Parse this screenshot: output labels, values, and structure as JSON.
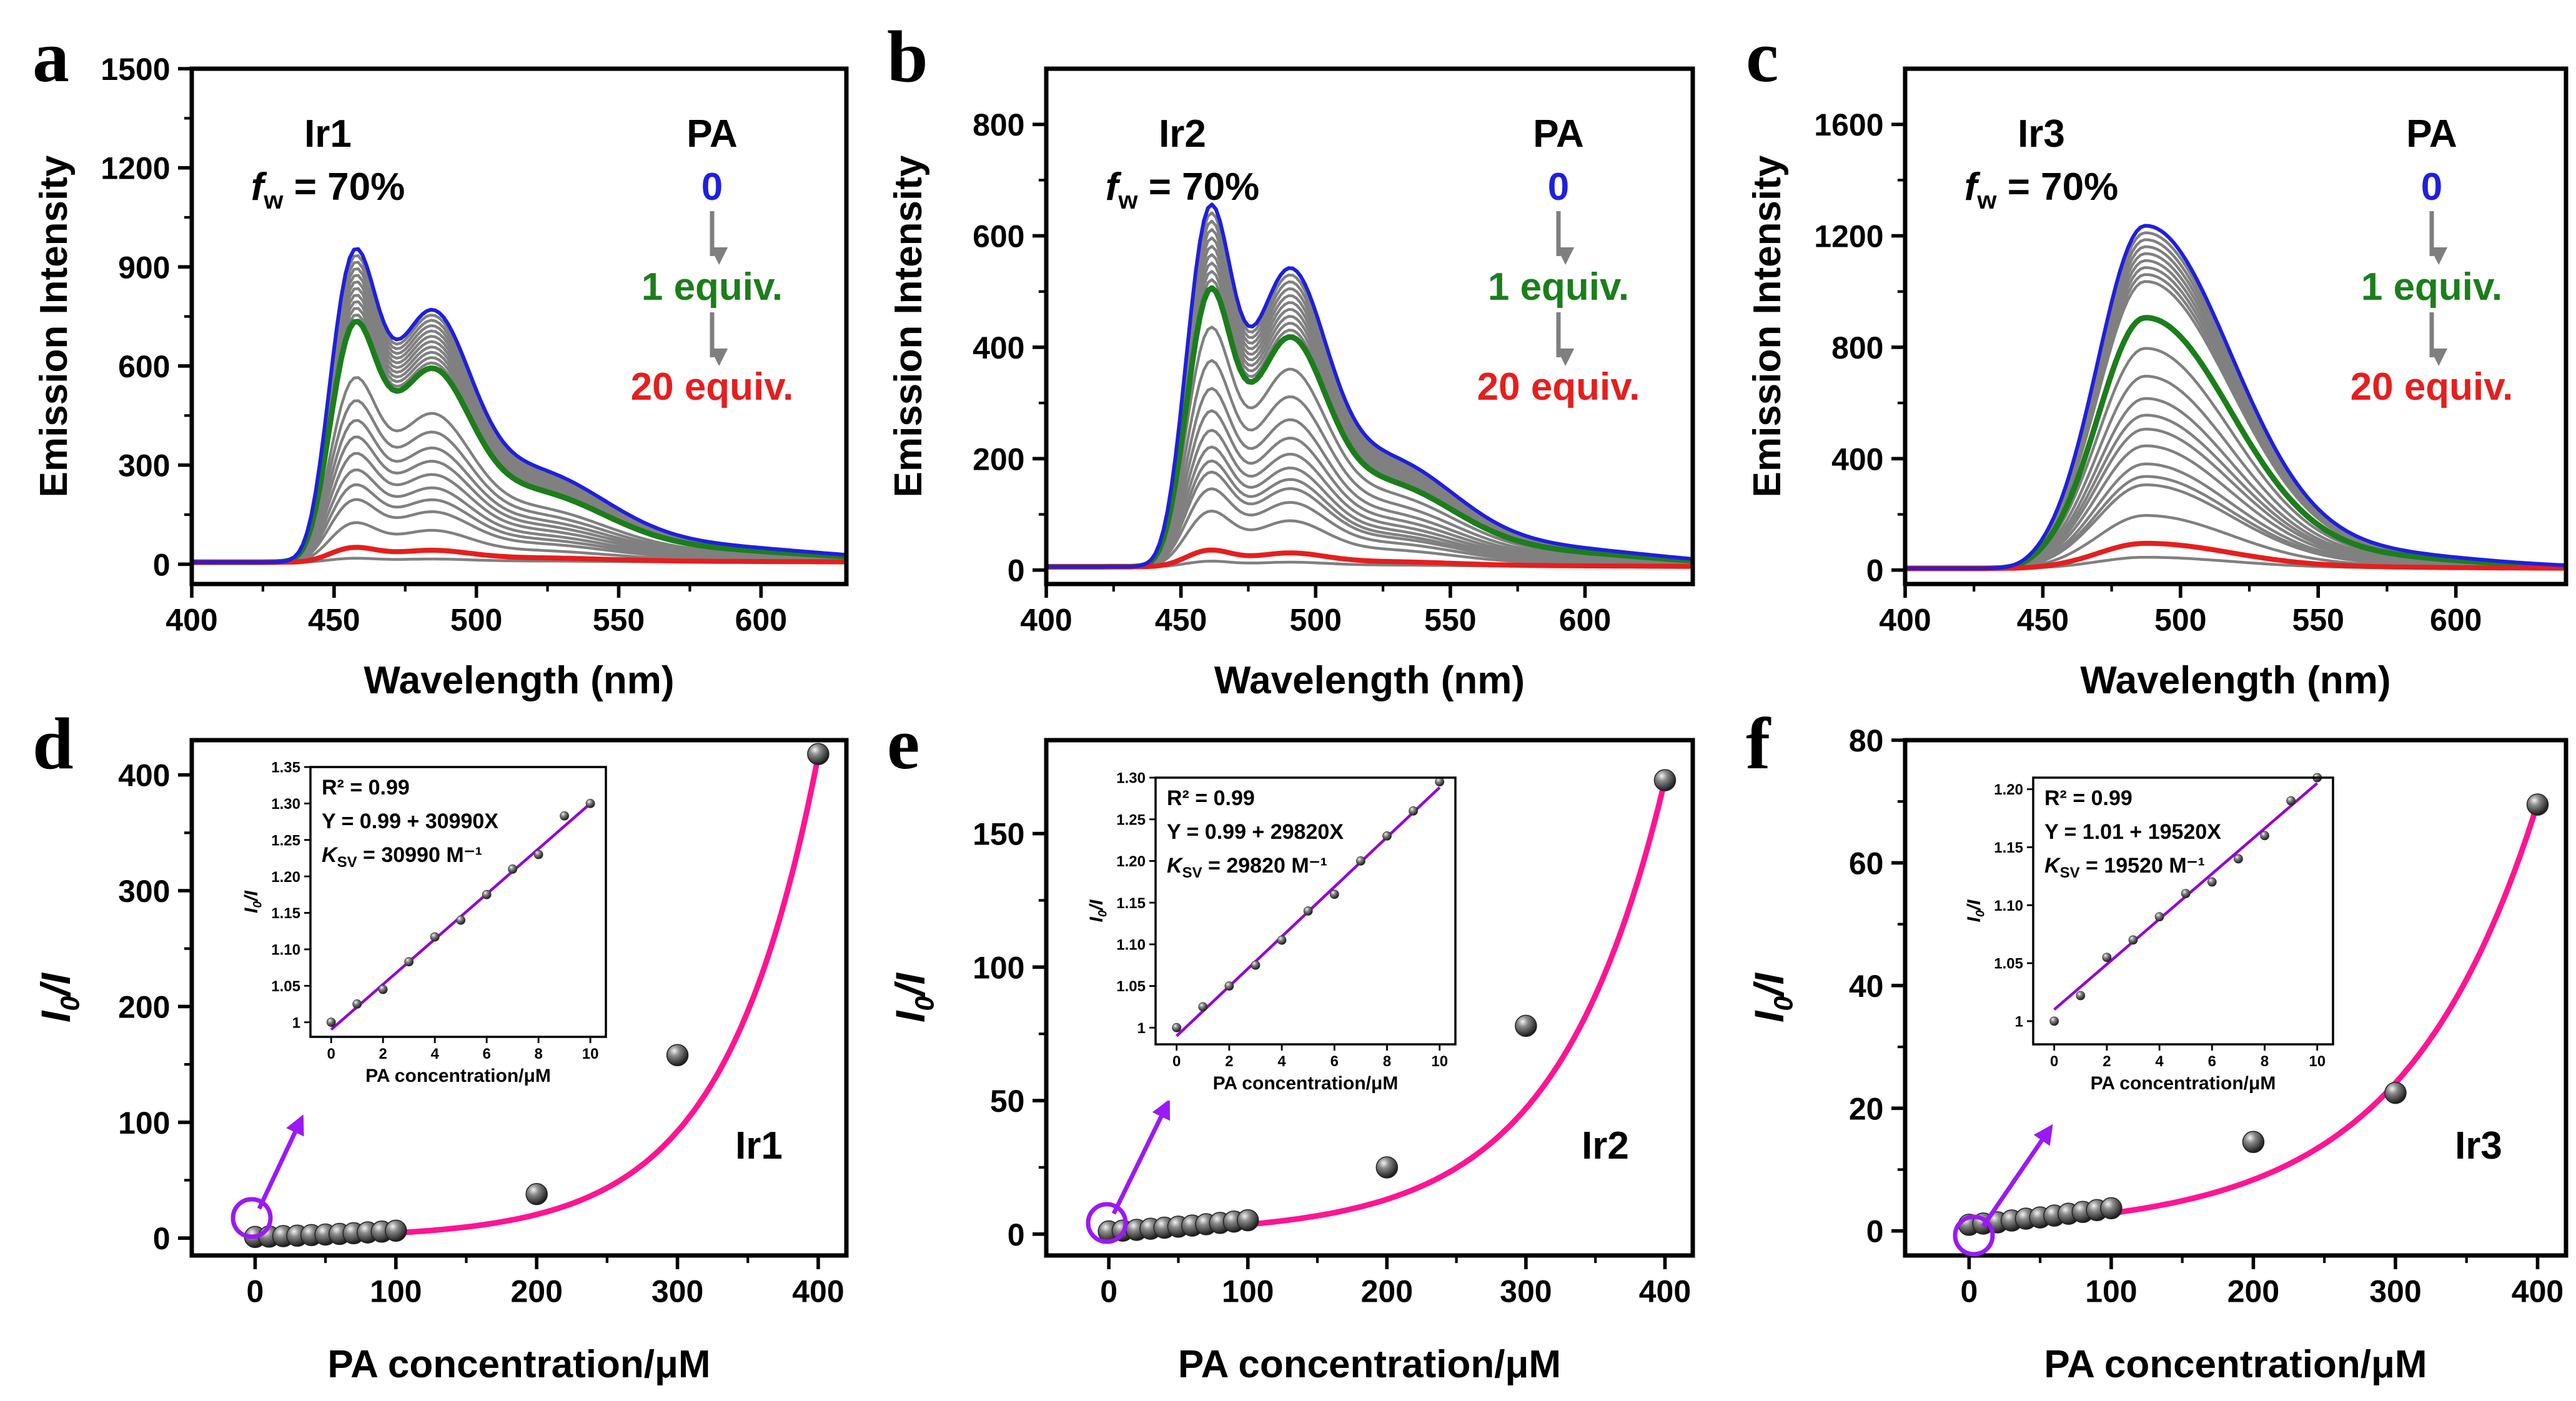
{
  "chart_data": [
    {
      "panel": "a",
      "type": "line",
      "title": "",
      "xlabel": "Wavelength (nm)",
      "ylabel": "Emission Intensity",
      "xlim": [
        400,
        630
      ],
      "ylim": [
        -60,
        1500
      ],
      "xticks": [
        400,
        450,
        500,
        550,
        600
      ],
      "yticks": [
        0,
        300,
        600,
        900,
        1200,
        1500
      ],
      "compound": "Ir1",
      "fw_prefix": "f",
      "fw_sub": "w",
      "fw_suffix": " = 70%",
      "legend": {
        "title": "PA",
        "start": "0",
        "mid": "1 equiv.",
        "end": "20 equiv."
      },
      "shape": "two-peak",
      "peak1_nm": 456,
      "peak2_nm": 483,
      "peak_intensities": [
        950,
        930,
        910,
        890,
        870,
        850,
        830,
        810,
        790,
        770,
        750,
        730,
        560,
        490,
        430,
        380,
        330,
        280,
        235,
        190,
        120,
        45,
        12
      ],
      "series_colors": {
        "initial": "#1f1fe0",
        "one_equiv": "#1b7e1b",
        "final": "#e61e1e",
        "other": "#808080"
      }
    },
    {
      "panel": "b",
      "type": "line",
      "title": "",
      "xlabel": "Wavelength (nm)",
      "ylabel": "Emission Intensity",
      "xlim": [
        400,
        640
      ],
      "ylim": [
        -25,
        900
      ],
      "xticks": [
        400,
        450,
        500,
        550,
        600
      ],
      "yticks": [
        0,
        200,
        400,
        600,
        800
      ],
      "compound": "Ir2",
      "fw_prefix": "f",
      "fw_sub": "w",
      "fw_suffix": " = 70%",
      "legend": {
        "title": "PA",
        "start": "0",
        "mid": "1 equiv.",
        "end": "20 equiv."
      },
      "shape": "two-peak",
      "peak1_nm": 460,
      "peak2_nm": 489,
      "peak_intensities": [
        650,
        635,
        620,
        605,
        590,
        575,
        560,
        545,
        530,
        515,
        500,
        430,
        370,
        320,
        280,
        245,
        215,
        190,
        170,
        140,
        100,
        30,
        10
      ],
      "series_colors": {
        "initial": "#1f1fe0",
        "one_equiv": "#1b7e1b",
        "final": "#e61e1e",
        "other": "#808080"
      }
    },
    {
      "panel": "c",
      "type": "line",
      "title": "",
      "xlabel": "Wavelength (nm)",
      "ylabel": "Emission Intensity",
      "xlim": [
        400,
        640
      ],
      "ylim": [
        -50,
        1800
      ],
      "xticks": [
        400,
        450,
        500,
        550,
        600
      ],
      "yticks": [
        0,
        400,
        800,
        1200,
        1600
      ],
      "compound": "Ir3",
      "fw_prefix": "f",
      "fw_sub": "w",
      "fw_suffix": " = 70%",
      "legend": {
        "title": "PA",
        "start": "0",
        "mid": "1 equiv.",
        "end": "20 equiv."
      },
      "shape": "one-peak",
      "peak1_nm": 487,
      "peak_intensities": [
        1230,
        1205,
        1180,
        1155,
        1130,
        1105,
        1080,
        1055,
        1030,
        900,
        790,
        690,
        610,
        550,
        500,
        440,
        375,
        330,
        300,
        190,
        90,
        40
      ],
      "series_colors": {
        "initial": "#1f1fe0",
        "one_equiv": "#1b7e1b",
        "final": "#e61e1e",
        "other": "#808080"
      }
    },
    {
      "panel": "d",
      "type": "scatter",
      "title": "",
      "xlabel": "PA concentration/μM",
      "ylabel_i": "I",
      "ylabel_sub": "0",
      "ylabel_rest": "/I",
      "xlim": [
        -45,
        420
      ],
      "ylim": [
        -15,
        430
      ],
      "xticks": [
        0,
        100,
        200,
        300,
        400
      ],
      "yticks": [
        0,
        100,
        200,
        300,
        400
      ],
      "compound": "Ir1",
      "x": [
        0,
        10,
        20,
        30,
        40,
        50,
        60,
        70,
        80,
        90,
        100,
        200,
        300,
        400
      ],
      "y": [
        1,
        1.3,
        1.7,
        2.1,
        2.6,
        3.1,
        3.6,
        4.2,
        4.9,
        5.6,
        6.4,
        38,
        158,
        418
      ],
      "fit": {
        "color": "#ff1493",
        "a": 1.0,
        "k": 0.01508
      },
      "inset": {
        "xlabel": "PA concentration/μM",
        "ylabel_i": "I",
        "ylabel_sub": "0",
        "ylabel_rest": "/I",
        "xlim": [
          -0.8,
          10.6
        ],
        "ylim": [
          0.98,
          1.35
        ],
        "xticks": [
          0,
          2,
          4,
          6,
          8,
          10
        ],
        "yticks": [
          1.0,
          1.05,
          1.1,
          1.15,
          1.2,
          1.25,
          1.3,
          1.35
        ],
        "x": [
          0,
          1,
          2,
          3,
          4,
          5,
          6,
          7,
          8,
          9,
          10
        ],
        "y": [
          1.0,
          1.025,
          1.045,
          1.083,
          1.117,
          1.14,
          1.175,
          1.21,
          1.23,
          1.283,
          1.3
        ],
        "fit_intercept": 0.99,
        "fit_slope": 0.03099,
        "fit_color": "#9400d3",
        "r2": "R² = 0.99",
        "equation": "Y = 0.99 + 30990X",
        "ksv_k": "K",
        "ksv_sub": "SV",
        "ksv_value": " = 30990 M⁻¹"
      }
    },
    {
      "panel": "e",
      "type": "scatter",
      "title": "",
      "xlabel": "PA concentration/μM",
      "ylabel_i": "I",
      "ylabel_sub": "0",
      "ylabel_rest": "/I",
      "xlim": [
        -45,
        420
      ],
      "ylim": [
        -8,
        185
      ],
      "xticks": [
        0,
        100,
        200,
        300,
        400
      ],
      "yticks": [
        0,
        50,
        100,
        150
      ],
      "compound": "Ir2",
      "x": [
        0,
        10,
        20,
        30,
        40,
        50,
        60,
        70,
        80,
        90,
        100,
        200,
        300,
        400
      ],
      "y": [
        1,
        1.3,
        1.6,
        2.0,
        2.4,
        2.8,
        3.2,
        3.7,
        4.2,
        4.7,
        5.2,
        25,
        78,
        170
      ],
      "fit": {
        "color": "#ff1493",
        "a": 1.0,
        "k": 0.01284
      },
      "inset": {
        "xlabel": "PA concentration/μM",
        "ylabel_i": "I",
        "ylabel_sub": "0",
        "ylabel_rest": "/I",
        "xlim": [
          -0.8,
          10.6
        ],
        "ylim": [
          0.98,
          1.3
        ],
        "xticks": [
          0,
          2,
          4,
          6,
          8,
          10
        ],
        "yticks": [
          1.0,
          1.05,
          1.1,
          1.15,
          1.2,
          1.25,
          1.3
        ],
        "x": [
          0,
          1,
          2,
          3,
          4,
          5,
          6,
          7,
          8,
          9,
          10
        ],
        "y": [
          1.0,
          1.025,
          1.05,
          1.075,
          1.105,
          1.14,
          1.16,
          1.2,
          1.23,
          1.26,
          1.295
        ],
        "fit_intercept": 0.99,
        "fit_slope": 0.02982,
        "fit_color": "#9400d3",
        "r2": "R² = 0.99",
        "equation": "Y = 0.99 + 29820X",
        "ksv_k": "K",
        "ksv_sub": "SV",
        "ksv_value": " = 29820 M⁻¹"
      }
    },
    {
      "panel": "f",
      "type": "scatter",
      "title": "",
      "xlabel": "PA concentration/μM",
      "ylabel_i": "I",
      "ylabel_sub": "0",
      "ylabel_rest": "/I",
      "xlim": [
        -45,
        420
      ],
      "ylim": [
        -4,
        80
      ],
      "xticks": [
        0,
        100,
        200,
        300,
        400
      ],
      "yticks": [
        0,
        20,
        40,
        60,
        80
      ],
      "compound": "Ir3",
      "x": [
        0,
        10,
        20,
        30,
        40,
        50,
        60,
        70,
        80,
        90,
        100,
        200,
        300,
        400
      ],
      "y": [
        1,
        1.2,
        1.4,
        1.7,
        2.0,
        2.2,
        2.5,
        2.8,
        3.1,
        3.4,
        3.7,
        14.5,
        22.5,
        69.5
      ],
      "fit": {
        "color": "#ff1493",
        "a": 1.0,
        "k": 0.01061
      },
      "inset": {
        "xlabel": "PA concentration/μM",
        "ylabel_i": "I",
        "ylabel_sub": "0",
        "ylabel_rest": "/I",
        "xlim": [
          -0.8,
          10.6
        ],
        "ylim": [
          0.98,
          1.21
        ],
        "xticks": [
          0,
          2,
          4,
          6,
          8,
          10
        ],
        "yticks": [
          1.0,
          1.05,
          1.1,
          1.15,
          1.2
        ],
        "x": [
          0,
          1,
          2,
          3,
          4,
          5,
          6,
          7,
          8,
          9,
          10
        ],
        "y": [
          1.0,
          1.022,
          1.055,
          1.07,
          1.09,
          1.11,
          1.12,
          1.14,
          1.16,
          1.19,
          1.21
        ],
        "fit_intercept": 1.01,
        "fit_slope": 0.01952,
        "fit_color": "#9400d3",
        "r2": "R² = 0.99",
        "equation": "Y = 1.01 + 19520X",
        "ksv_k": "K",
        "ksv_sub": "SV",
        "ksv_value": " = 19520 M⁻¹"
      }
    }
  ]
}
